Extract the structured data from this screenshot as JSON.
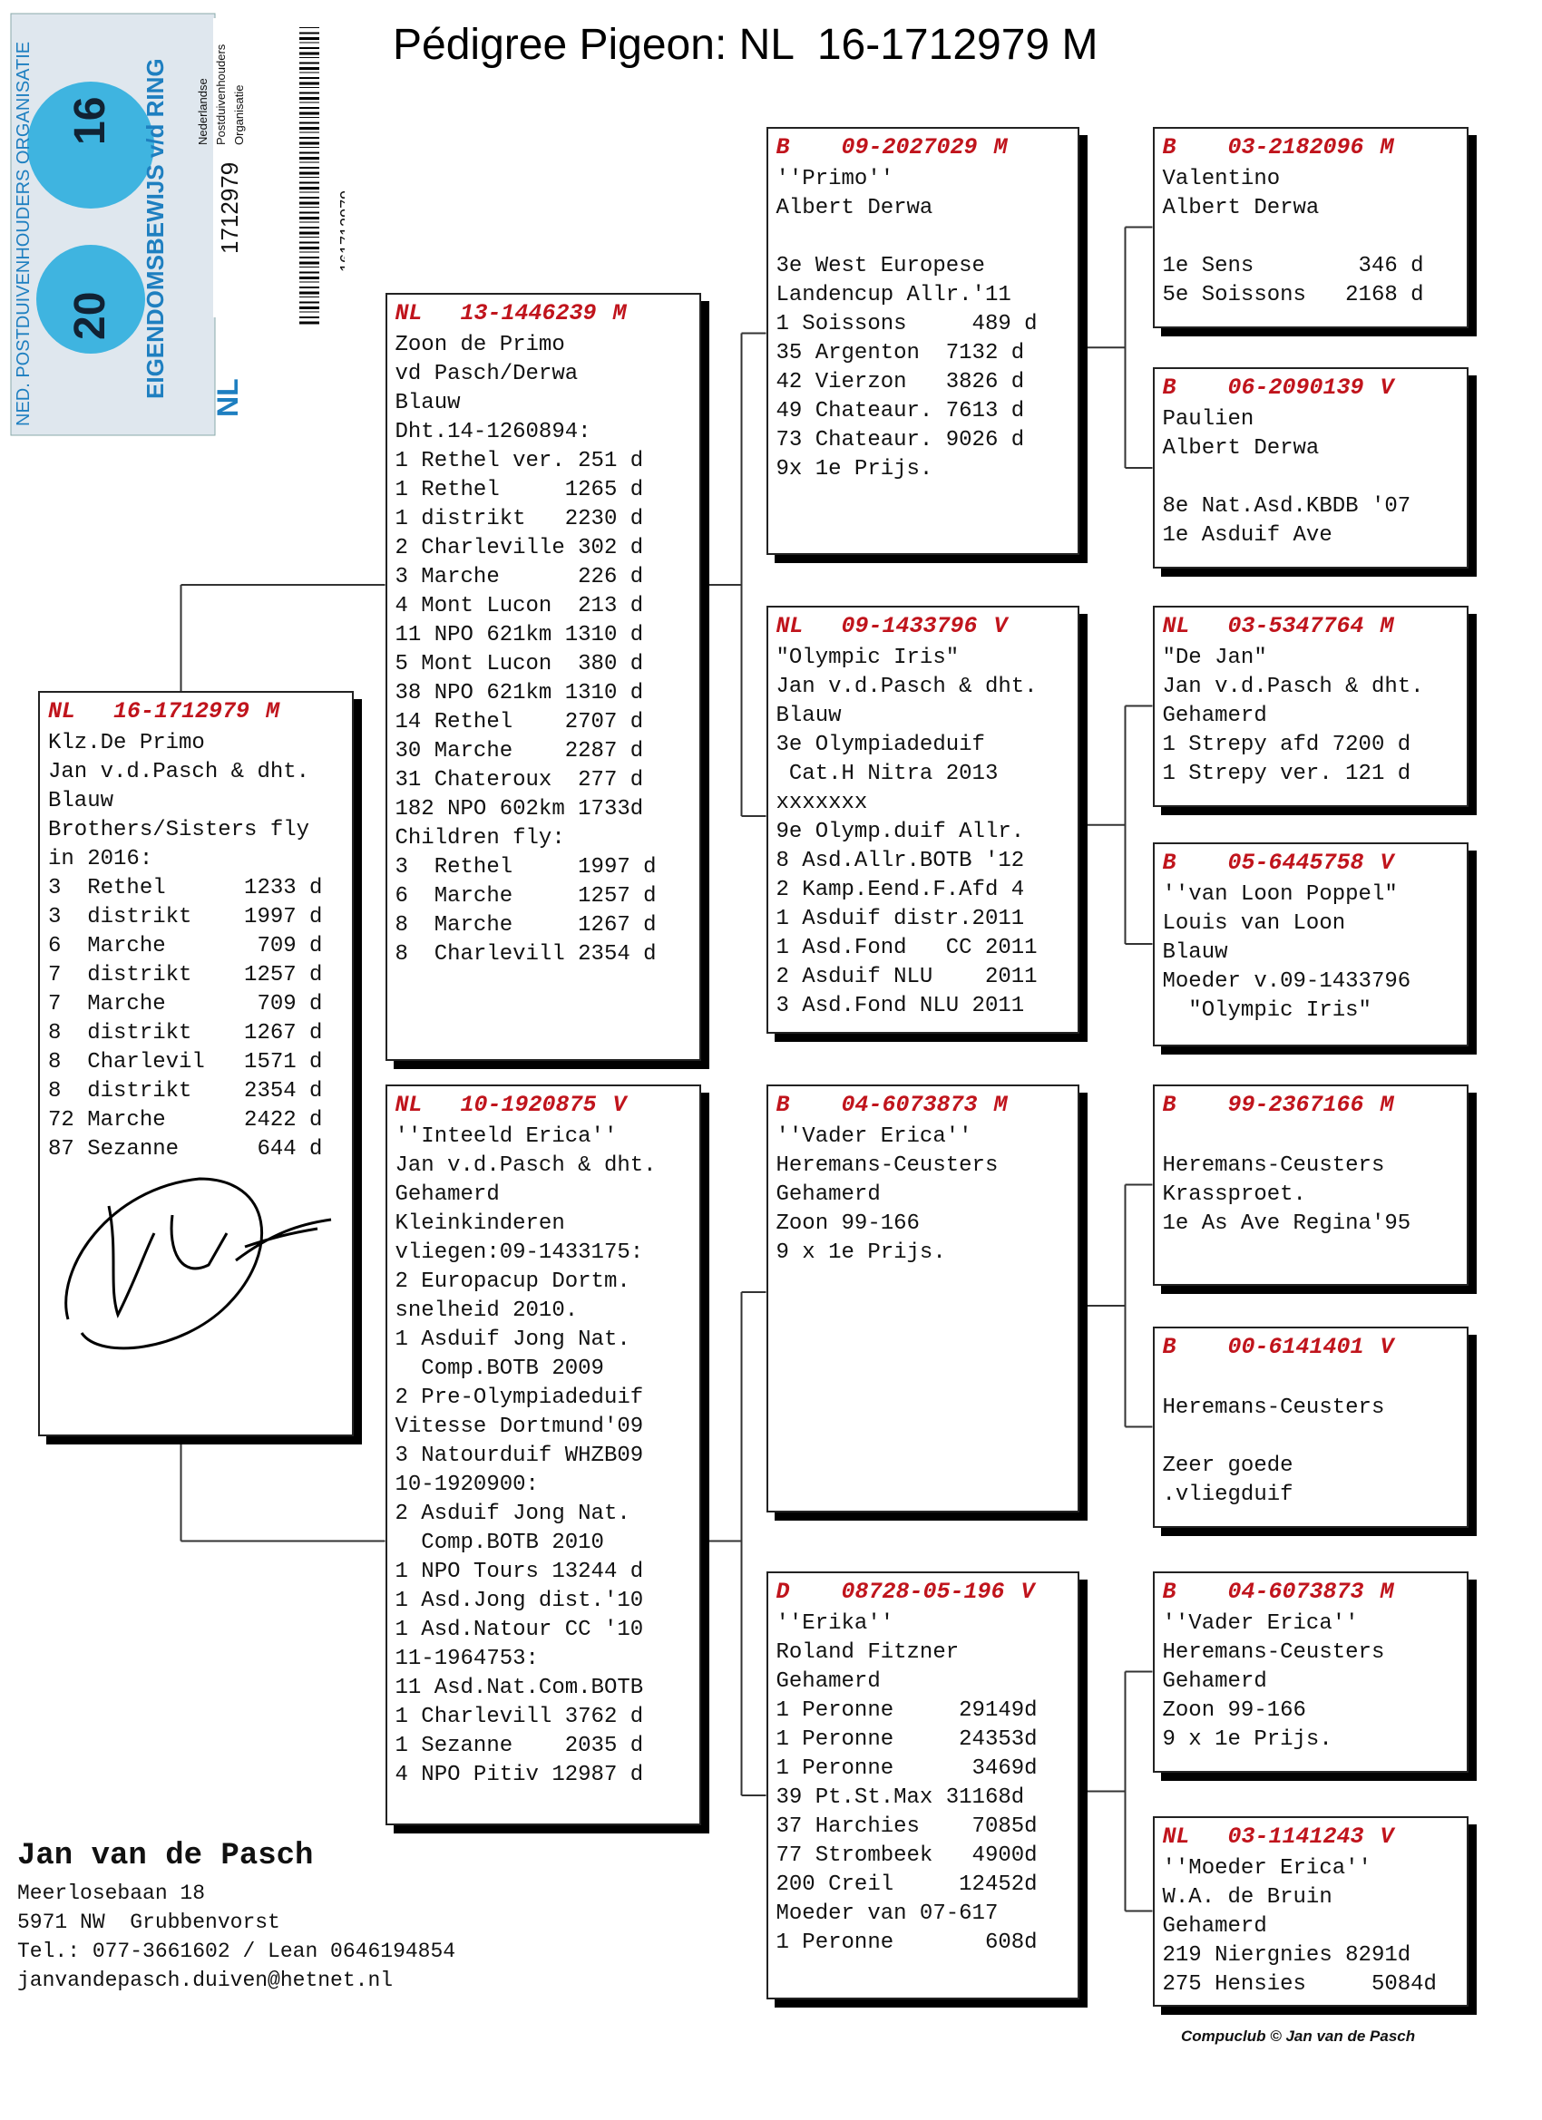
{
  "title": "Pédigree Pigeon: NL  16-1712979 M",
  "ring_card": {
    "org": "NED. POSTDUIVENHOUDERS ORGANISATIE",
    "name": "EIGENDOMSBEWIJS v/d RING",
    "year_a": "20",
    "year_b": "16",
    "country": "NL",
    "number": "1712979",
    "barcode_number": "161712979",
    "org_lines": [
      "Nederlandse",
      "Postduivenhouders",
      "Organisatie"
    ]
  },
  "pigeons": [
    {
      "prefix": "NL",
      "ring": "16-1712979",
      "sex": "M",
      "blocks": [
        [
          "Klz.De Primo",
          "Jan v.d.Pasch & dht.",
          "Blauw",
          "Brothers/Sisters fly",
          "in 2016:",
          "3  Rethel      1233 d",
          "3  distrikt    1997 d",
          "6  Marche       709 d",
          "7  distrikt    1257 d",
          "7  Marche       709 d",
          "8  distrikt    1267 d",
          "8  Charlevil   1571 d",
          "8  distrikt    2354 d",
          "72 Marche      2422 d",
          "87 Sezanne      644 d"
        ]
      ]
    },
    {
      "prefix": "NL",
      "ring": "13-1446239",
      "sex": "M",
      "blocks": [
        [
          "Zoon de Primo",
          "vd Pasch/Derwa",
          "Blauw",
          "Dht.14-1260894:",
          "1 Rethel ver. 251 d",
          "1 Rethel     1265 d",
          "1 distrikt   2230 d",
          "2 Charleville 302 d",
          "3 Marche      226 d",
          "4 Mont Lucon  213 d",
          "11 NPO 621km 1310 d",
          "5 Mont Lucon  380 d",
          "38 NPO 621km 1310 d",
          "14 Rethel    2707 d",
          "30 Marche    2287 d",
          "31 Chateroux  277 d",
          "182 NPO 602km 1733d",
          "Children fly:",
          "3  Rethel     1997 d",
          "6  Marche     1257 d",
          "8  Marche     1267 d",
          "8  Charlevill 2354 d"
        ]
      ]
    },
    {
      "prefix": "NL",
      "ring": "10-1920875",
      "sex": "V",
      "blocks": [
        [
          "''Inteeld Erica''",
          "Jan v.d.Pasch & dht.",
          "Gehamerd",
          "Kleinkinderen",
          "vliegen:09-1433175:",
          "2 Europacup Dortm.",
          "snelheid 2010.",
          "1 Asduif Jong Nat.",
          "  Comp.BOTB 2009",
          "2 Pre-Olympiadeduif",
          "Vitesse Dortmund'09",
          "3 Natourduif WHZB09",
          "10-1920900:",
          "2 Asduif Jong Nat.",
          "  Comp.BOTB 2010",
          "1 NPO Tours 13244 d",
          "1 Asd.Jong dist.'10",
          "1 Asd.Natour CC '10",
          "11-1964753:",
          "11 Asd.Nat.Com.BOTB",
          "1 Charlevill 3762 d",
          "1 Sezanne    2035 d",
          "4 NPO Pitiv 12987 d"
        ]
      ]
    },
    {
      "prefix": "B",
      "ring": "09-2027029",
      "sex": "M",
      "blocks": [
        [
          "''Primo''",
          "Albert Derwa"
        ],
        [
          "3e West Europese",
          "Landencup Allr.'11",
          "1 Soissons     489 d",
          "35 Argenton  7132 d",
          "42 Vierzon   3826 d",
          "49 Chateaur. 7613 d",
          "73 Chateaur. 9026 d",
          "9x 1e Prijs."
        ]
      ]
    },
    {
      "prefix": "NL",
      "ring": "09-1433796",
      "sex": "V",
      "blocks": [
        [
          "\"Olympic Iris\"",
          "Jan v.d.Pasch & dht.",
          "Blauw",
          "3e Olympiadeduif",
          " Cat.H Nitra 2013",
          "xxxxxxx",
          "9e Olymp.duif Allr.",
          "8 Asd.Allr.BOTB '12",
          "2 Kamp.Eend.F.Afd 4",
          "1 Asduif distr.2011",
          "1 Asd.Fond   CC 2011",
          "2 Asduif NLU    2011",
          "3 Asd.Fond NLU 2011"
        ]
      ]
    },
    {
      "prefix": "B",
      "ring": "04-6073873",
      "sex": "M",
      "blocks": [
        [
          "''Vader Erica''",
          "Heremans-Ceusters",
          "Gehamerd",
          "Zoon 99-166",
          "9 x 1e Prijs."
        ]
      ]
    },
    {
      "prefix": "D",
      "ring": "08728-05-196",
      "sex": "V",
      "blocks": [
        [
          "''Erika''",
          "Roland Fitzner",
          "Gehamerd",
          "1 Peronne     29149d",
          "1 Peronne     24353d",
          "1 Peronne      3469d",
          "39 Pt.St.Max 31168d",
          "37 Harchies    7085d",
          "77 Strombeek   4900d",
          "200 Creil     12452d",
          "Moeder van 07-617",
          "1 Peronne       608d"
        ]
      ]
    },
    {
      "prefix": "B",
      "ring": "03-2182096",
      "sex": "M",
      "blocks": [
        [
          "Valentino",
          "Albert Derwa"
        ],
        [
          "1e Sens        346 d",
          "5e Soissons   2168 d"
        ]
      ]
    },
    {
      "prefix": "B",
      "ring": "06-2090139",
      "sex": "V",
      "blocks": [
        [
          "Paulien",
          "Albert Derwa"
        ],
        [
          "8e Nat.Asd.KBDB '07",
          "1e Asduif Ave"
        ]
      ]
    },
    {
      "prefix": "NL",
      "ring": "03-5347764",
      "sex": "M",
      "blocks": [
        [
          "\"De Jan\"",
          "Jan v.d.Pasch & dht.",
          "Gehamerd",
          "1 Strepy afd 7200 d",
          "1 Strepy ver. 121 d"
        ]
      ]
    },
    {
      "prefix": "B",
      "ring": "05-6445758",
      "sex": "V",
      "blocks": [
        [
          "''van Loon Poppel\"",
          "Louis van Loon",
          "Blauw",
          "Moeder v.09-1433796",
          "  \"Olympic Iris\""
        ]
      ]
    },
    {
      "prefix": "B",
      "ring": "99-2367166",
      "sex": "M",
      "blocks": [
        [
          "Heremans-Ceusters",
          "Krassproet.",
          "1e As Ave Regina'95"
        ]
      ]
    },
    {
      "prefix": "B",
      "ring": "00-6141401",
      "sex": "V",
      "blocks": [
        [
          "Heremans-Ceusters"
        ],
        [
          "Zeer goede",
          ".vliegduif"
        ]
      ]
    },
    {
      "prefix": "B",
      "ring": "04-6073873",
      "sex": "M",
      "blocks": [
        [
          "''Vader Erica''",
          "Heremans-Ceusters",
          "Gehamerd",
          "Zoon 99-166",
          "9 x 1e Prijs."
        ]
      ]
    },
    {
      "prefix": "NL",
      "ring": "03-1141243",
      "sex": "V",
      "blocks": [
        [
          "''Moeder Erica''",
          "W.A. de Bruin",
          "Gehamerd",
          "219 Niergnies 8291d",
          "275 Hensies     5084d"
        ]
      ]
    }
  ],
  "breeder": {
    "name": "Jan van de Pasch",
    "address": "Meerlosebaan 18",
    "city": "5971 NW  Grubbenvorst",
    "phone": "Tel.: 077-3661602 / Lean 0646194854",
    "email": "janvandepasch.duiven@hetnet.nl"
  },
  "footer_credit": "Compuclub © Jan van de Pasch"
}
